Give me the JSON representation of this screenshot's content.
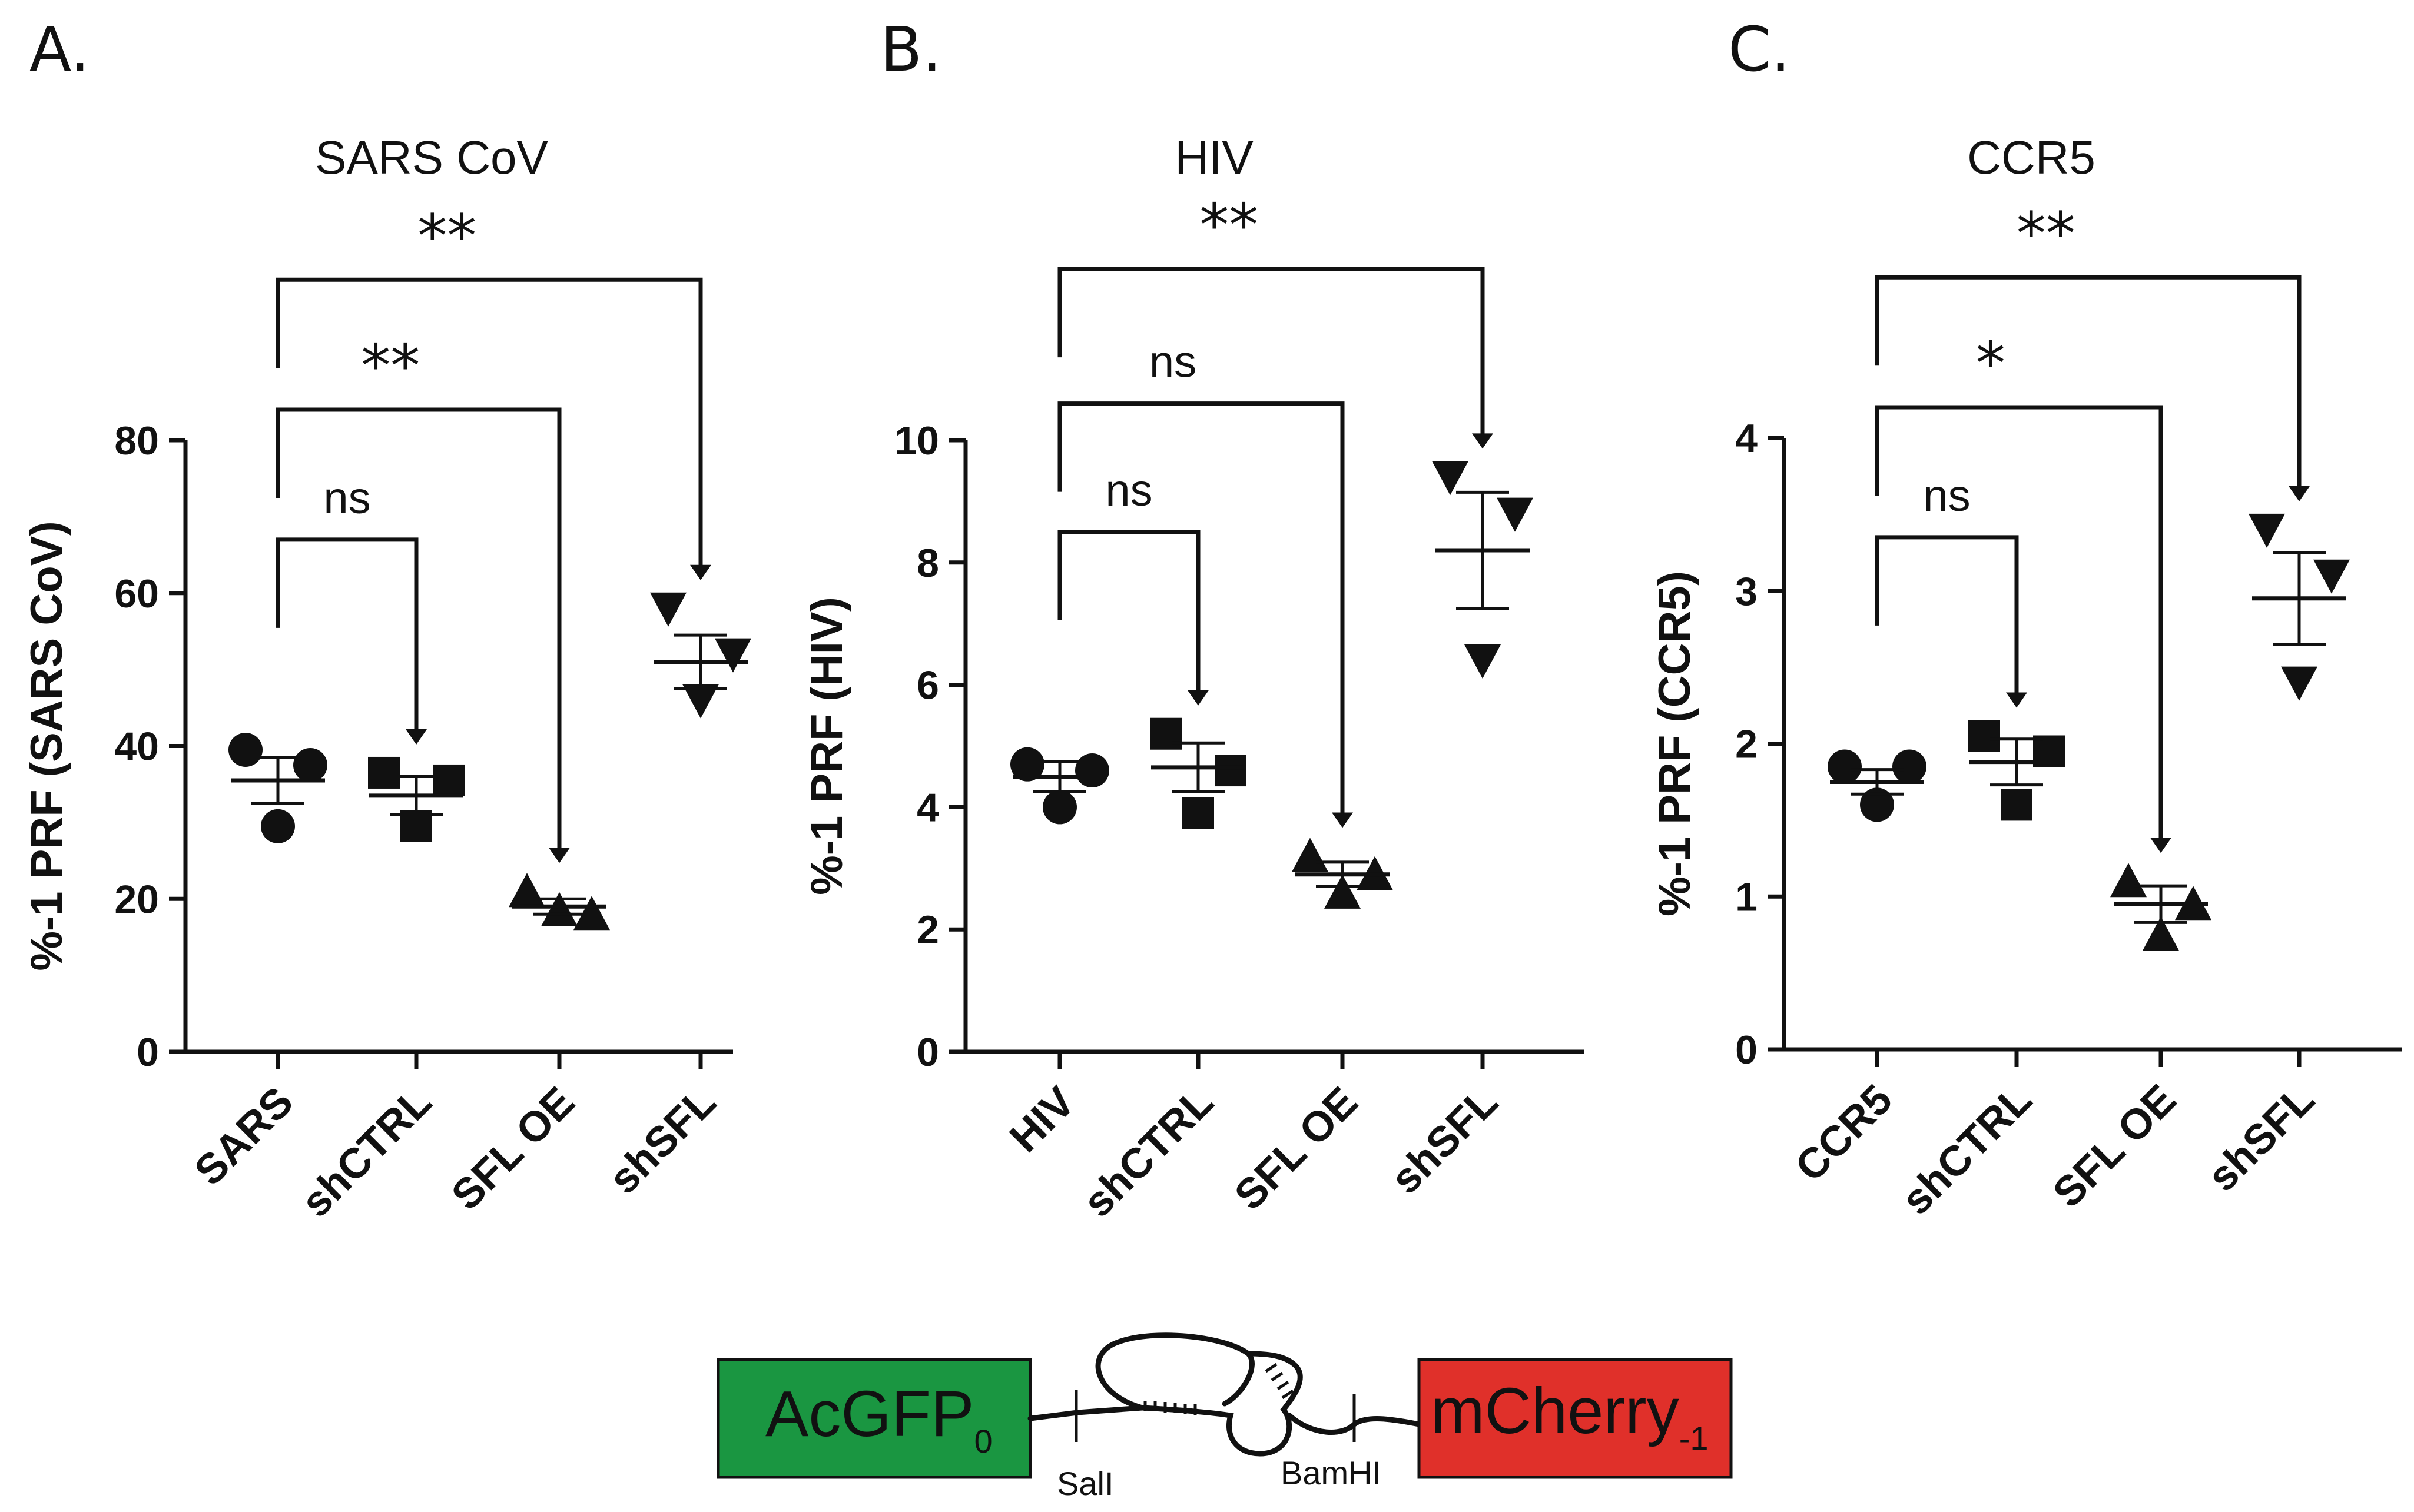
{
  "chart_data": [
    {
      "type": "scatter",
      "panel": "A.",
      "title": "SARS CoV",
      "ylabel": "%-1 PRF (SARS CoV)",
      "ylim": [
        0,
        80
      ],
      "yticks": [
        0,
        20,
        40,
        60,
        80
      ],
      "categories": [
        "SARS",
        "shCTRL",
        "SFL OE",
        "shSFL"
      ],
      "markers": [
        "circle",
        "square",
        "triangle-up",
        "triangle-down"
      ],
      "points": [
        [
          39.5,
          37.5,
          29.5
        ],
        [
          36.5,
          35.5,
          29.5
        ],
        [
          21,
          18,
          18.5
        ],
        [
          58,
          52,
          46
        ]
      ],
      "mean": [
        35.5,
        33.5,
        19,
        51
      ],
      "sem": [
        3,
        2.5,
        1,
        3.5
      ],
      "comparisons": [
        {
          "from": 0,
          "to": 1,
          "label": "ns",
          "y": 67
        },
        {
          "from": 0,
          "to": 2,
          "label": "**",
          "y": 84
        },
        {
          "from": 0,
          "to": 3,
          "label": "**",
          "y": 101
        }
      ]
    },
    {
      "type": "scatter",
      "panel": "B.",
      "title": "HIV",
      "ylabel": "%-1 PRF (HIV)",
      "ylim": [
        0,
        10
      ],
      "yticks": [
        0,
        2,
        4,
        6,
        8,
        10
      ],
      "categories": [
        "HIV",
        "shCTRL",
        "SFL OE",
        "shSFL"
      ],
      "markers": [
        "circle",
        "square",
        "triangle-up",
        "triangle-down"
      ],
      "points": [
        [
          4.7,
          4.6,
          4.0
        ],
        [
          5.2,
          4.6,
          3.9
        ],
        [
          3.2,
          2.9,
          2.6
        ],
        [
          9.4,
          8.8,
          6.4
        ]
      ],
      "mean": [
        4.5,
        4.65,
        2.9,
        8.2
      ],
      "sem": [
        0.25,
        0.4,
        0.2,
        0.95
      ],
      "comparisons": [
        {
          "from": 0,
          "to": 1,
          "label": "ns",
          "y": 8.5
        },
        {
          "from": 0,
          "to": 2,
          "label": "ns",
          "y": 10.6
        },
        {
          "from": 0,
          "to": 3,
          "label": "**",
          "y": 12.8
        }
      ]
    },
    {
      "type": "scatter",
      "panel": "C.",
      "title": "CCR5",
      "ylabel": "%-1 PRF (CCR5)",
      "ylim": [
        0,
        4
      ],
      "yticks": [
        0,
        1,
        2,
        3,
        4
      ],
      "categories": [
        "CCR5",
        "shCTRL",
        "SFL OE",
        "shSFL"
      ],
      "markers": [
        "circle",
        "square",
        "triangle-up",
        "triangle-down"
      ],
      "points": [
        [
          1.85,
          1.85,
          1.6
        ],
        [
          2.05,
          1.95,
          1.6
        ],
        [
          1.1,
          0.95,
          0.75
        ],
        [
          3.4,
          3.1,
          2.4
        ]
      ],
      "mean": [
        1.75,
        1.88,
        0.95,
        2.95
      ],
      "sem": [
        0.08,
        0.15,
        0.12,
        0.3
      ],
      "comparisons": [
        {
          "from": 0,
          "to": 1,
          "label": "ns",
          "y": 3.35
        },
        {
          "from": 0,
          "to": 2,
          "label": "*",
          "y": 4.2
        },
        {
          "from": 0,
          "to": 3,
          "label": "**",
          "y": 5.05
        }
      ]
    }
  ],
  "construct": {
    "left_box": {
      "label": "AcGFP",
      "subscript": "0",
      "color": "#1a9641"
    },
    "right_box": {
      "label": "mCherry",
      "subscript": "-1",
      "color": "#e0302a"
    },
    "site_left": "SalI",
    "site_right": "BamHI"
  }
}
